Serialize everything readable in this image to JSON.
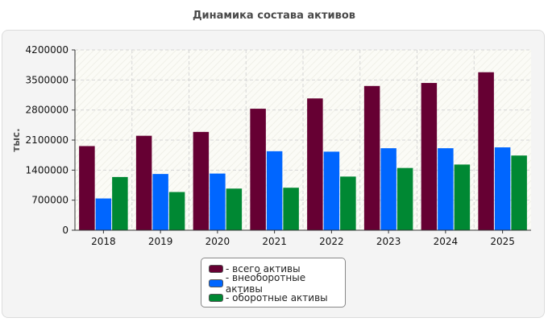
{
  "chart_data": {
    "type": "bar",
    "title": "Динамика состава активов",
    "ylabel": "тыс.",
    "xlabel": "",
    "ylim": [
      0,
      4200000
    ],
    "yticks": [
      "0",
      "700000",
      "1400000",
      "2100000",
      "2800000",
      "3500000",
      "4200000"
    ],
    "categories": [
      "2018",
      "2019",
      "2020",
      "2021",
      "2022",
      "2023",
      "2024",
      "2025"
    ],
    "series": [
      {
        "name": "- всего активы",
        "color": "#660033",
        "values": [
          1960000,
          2200000,
          2290000,
          2830000,
          3070000,
          3360000,
          3430000,
          3680000
        ]
      },
      {
        "name": "- внеоборотные активы",
        "color": "#0066ff",
        "values": [
          740000,
          1310000,
          1320000,
          1840000,
          1830000,
          1910000,
          1910000,
          1930000
        ]
      },
      {
        "name": "- оборотные активы",
        "color": "#008833",
        "values": [
          1240000,
          890000,
          970000,
          990000,
          1250000,
          1450000,
          1530000,
          1740000
        ]
      }
    ],
    "grid": true,
    "legend_position": "bottom"
  }
}
